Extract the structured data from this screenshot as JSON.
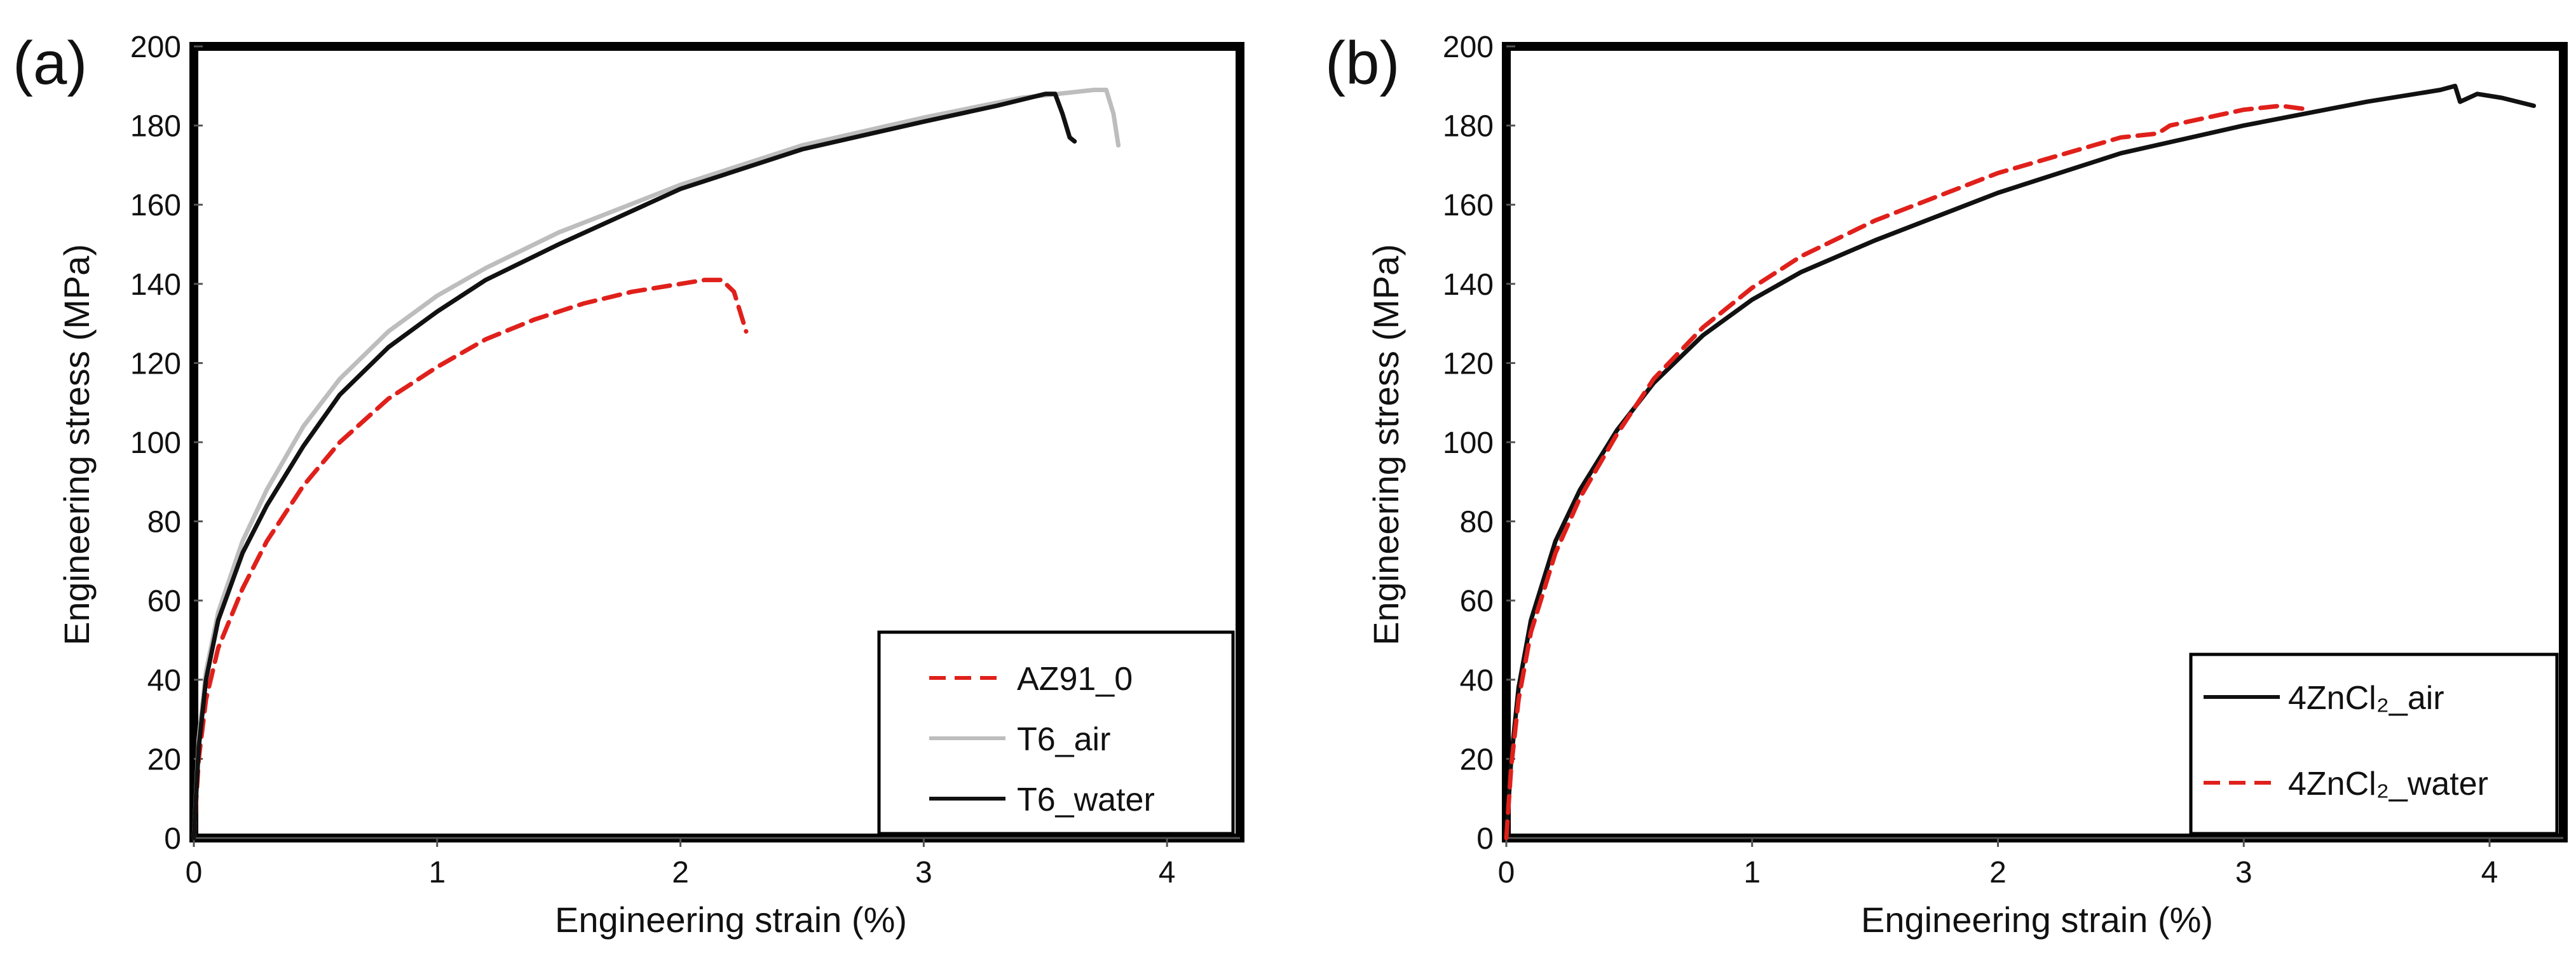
{
  "chart_data": [
    {
      "type": "line",
      "panel_label": "(a)",
      "xlabel": "Engineering strain (%)",
      "ylabel": "Engineering stress (MPa)",
      "xlim": [
        0,
        4.3
      ],
      "ylim": [
        0,
        200
      ],
      "xticks": [
        "0",
        "1",
        "2",
        "3",
        "4"
      ],
      "yticks": [
        "0",
        "20",
        "40",
        "60",
        "80",
        "100",
        "120",
        "140",
        "160",
        "180",
        "200"
      ],
      "grid": false,
      "legend_position": "bottom-right",
      "series": [
        {
          "name": "AZ91_0",
          "color": "#e0201b",
          "dash": true,
          "points": [
            [
              0,
              0
            ],
            [
              0.02,
              20
            ],
            [
              0.05,
              35
            ],
            [
              0.1,
              48
            ],
            [
              0.2,
              63
            ],
            [
              0.3,
              75
            ],
            [
              0.45,
              89
            ],
            [
              0.6,
              100
            ],
            [
              0.8,
              111
            ],
            [
              1.0,
              119
            ],
            [
              1.2,
              126
            ],
            [
              1.4,
              131
            ],
            [
              1.6,
              135
            ],
            [
              1.8,
              138
            ],
            [
              2.0,
              140
            ],
            [
              2.1,
              141
            ],
            [
              2.17,
              141
            ],
            [
              2.22,
              138
            ],
            [
              2.25,
              132
            ],
            [
              2.27,
              128
            ]
          ]
        },
        {
          "name": "T6_air",
          "color": "#bdbdbd",
          "dash": false,
          "points": [
            [
              0,
              0
            ],
            [
              0.02,
              25
            ],
            [
              0.05,
              42
            ],
            [
              0.1,
              57
            ],
            [
              0.2,
              75
            ],
            [
              0.3,
              88
            ],
            [
              0.45,
              104
            ],
            [
              0.6,
              116
            ],
            [
              0.8,
              128
            ],
            [
              1.0,
              137
            ],
            [
              1.2,
              144
            ],
            [
              1.5,
              153
            ],
            [
              2.0,
              165
            ],
            [
              2.5,
              175
            ],
            [
              3.0,
              182
            ],
            [
              3.4,
              187
            ],
            [
              3.55,
              188
            ],
            [
              3.7,
              189
            ],
            [
              3.75,
              189
            ],
            [
              3.78,
              183
            ],
            [
              3.8,
              175
            ]
          ]
        },
        {
          "name": "T6_water",
          "color": "#111111",
          "dash": false,
          "points": [
            [
              0,
              0
            ],
            [
              0.02,
              23
            ],
            [
              0.05,
              40
            ],
            [
              0.1,
              55
            ],
            [
              0.2,
              72
            ],
            [
              0.3,
              84
            ],
            [
              0.45,
              99
            ],
            [
              0.6,
              112
            ],
            [
              0.8,
              124
            ],
            [
              1.0,
              133
            ],
            [
              1.2,
              141
            ],
            [
              1.5,
              150
            ],
            [
              2.0,
              164
            ],
            [
              2.5,
              174
            ],
            [
              3.0,
              181
            ],
            [
              3.3,
              185
            ],
            [
              3.5,
              188
            ],
            [
              3.54,
              188
            ],
            [
              3.57,
              183
            ],
            [
              3.6,
              177
            ],
            [
              3.62,
              176
            ]
          ]
        }
      ]
    },
    {
      "type": "line",
      "panel_label": "(b)",
      "xlabel": "Engineering strain (%)",
      "ylabel": "Engineering stress (MPa)",
      "xlim": [
        0,
        4.3
      ],
      "ylim": [
        0,
        200
      ],
      "xticks": [
        "0",
        "1",
        "2",
        "3",
        "4"
      ],
      "yticks": [
        "0",
        "20",
        "40",
        "60",
        "80",
        "100",
        "120",
        "140",
        "160",
        "180",
        "200"
      ],
      "grid": false,
      "legend_position": "bottom-right",
      "series": [
        {
          "name": "4ZnCl₂_air",
          "color": "#111111",
          "dash": false,
          "points": [
            [
              0,
              0
            ],
            [
              0.02,
              20
            ],
            [
              0.05,
              38
            ],
            [
              0.1,
              55
            ],
            [
              0.2,
              75
            ],
            [
              0.3,
              88
            ],
            [
              0.45,
              103
            ],
            [
              0.6,
              115
            ],
            [
              0.8,
              127
            ],
            [
              1.0,
              136
            ],
            [
              1.2,
              143
            ],
            [
              1.5,
              151
            ],
            [
              2.0,
              163
            ],
            [
              2.5,
              173
            ],
            [
              3.0,
              180
            ],
            [
              3.5,
              186
            ],
            [
              3.8,
              189
            ],
            [
              3.86,
              190
            ],
            [
              3.88,
              186
            ],
            [
              3.95,
              188
            ],
            [
              4.05,
              187
            ],
            [
              4.18,
              185
            ]
          ]
        },
        {
          "name": "4ZnCl₂_water",
          "color": "#e0201b",
          "dash": true,
          "points": [
            [
              0,
              0
            ],
            [
              0.02,
              18
            ],
            [
              0.05,
              35
            ],
            [
              0.1,
              52
            ],
            [
              0.2,
              72
            ],
            [
              0.3,
              86
            ],
            [
              0.45,
              102
            ],
            [
              0.6,
              116
            ],
            [
              0.8,
              129
            ],
            [
              1.0,
              139
            ],
            [
              1.2,
              147
            ],
            [
              1.5,
              156
            ],
            [
              2.0,
              168
            ],
            [
              2.5,
              177
            ],
            [
              2.65,
              178
            ],
            [
              2.7,
              180
            ],
            [
              3.0,
              184
            ],
            [
              3.15,
              185
            ],
            [
              3.27,
              184
            ]
          ]
        }
      ]
    }
  ]
}
